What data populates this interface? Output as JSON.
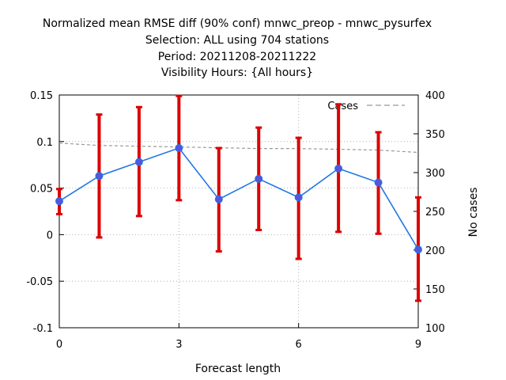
{
  "chart_data": {
    "type": "line",
    "title_lines": [
      "Normalized mean RMSE diff (90% conf) mnwc_preop - mnwc_pysurfex",
      "Selection: ALL using   704 stations",
      "Period: 20211208-20211222",
      "Visibility   Hours: {All hours}"
    ],
    "xlabel": "Forecast length",
    "ylabel": "",
    "y2label": "No cases",
    "xlim": [
      0,
      9
    ],
    "ylim": [
      -0.1,
      0.15
    ],
    "y2lim": [
      100,
      400
    ],
    "x_ticks": [
      0,
      3,
      6,
      9
    ],
    "y_ticks": [
      -0.1,
      -0.05,
      0,
      0.05,
      0.1,
      0.15
    ],
    "y_tick_labels": [
      "-0.1",
      "-0.05",
      "0",
      "0.05",
      "0.1",
      "0.15"
    ],
    "y2_ticks": [
      100,
      150,
      200,
      250,
      300,
      350,
      400
    ],
    "grid": true,
    "legend_position": "top-right",
    "x": [
      0,
      1,
      2,
      3,
      4,
      5,
      6,
      7,
      8,
      9
    ],
    "series": [
      {
        "values": [
          0.036,
          0.063,
          0.078,
          0.093,
          0.038,
          0.06,
          0.04,
          0.071,
          0.056,
          -0.016
        ],
        "color": "#1f77e4",
        "marker_color": "#5555dd"
      }
    ],
    "error_bars": {
      "low": [
        0.022,
        -0.003,
        0.02,
        0.037,
        -0.018,
        0.005,
        -0.026,
        0.003,
        0.001,
        -0.071
      ],
      "high": [
        0.049,
        0.129,
        0.137,
        0.149,
        0.093,
        0.115,
        0.104,
        0.14,
        0.11,
        0.04
      ],
      "color": "#dd0000"
    },
    "cases": {
      "name": "Cases",
      "axis": "y2",
      "values": [
        338,
        335,
        334,
        333,
        332,
        331,
        331,
        330,
        329,
        326
      ],
      "color": "#999999"
    }
  }
}
